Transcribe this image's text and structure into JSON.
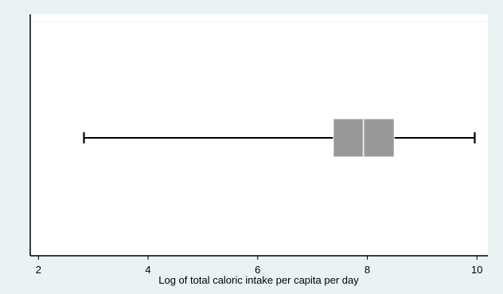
{
  "chart_data": {
    "type": "boxplot",
    "title": "",
    "xlabel": "Log of total caloric intake per capita per day",
    "ylabel": "",
    "xlim": [
      1.85,
      10.2
    ],
    "xticks": [
      2,
      4,
      6,
      8,
      10
    ],
    "xtick_labels": [
      "2",
      "4",
      "6",
      "8",
      "10"
    ],
    "grid": false,
    "orientation": "horizontal",
    "boxes": [
      {
        "whisker_low": 2.83,
        "q1": 7.38,
        "median": 7.93,
        "q3": 8.49,
        "whisker_high": 9.96
      }
    ],
    "colors": {
      "background": "#eaf2f3",
      "plot_area": "#ffffff",
      "box_fill": "#989898",
      "median_line": "#e8e8e8",
      "whisker": "#000000"
    }
  }
}
